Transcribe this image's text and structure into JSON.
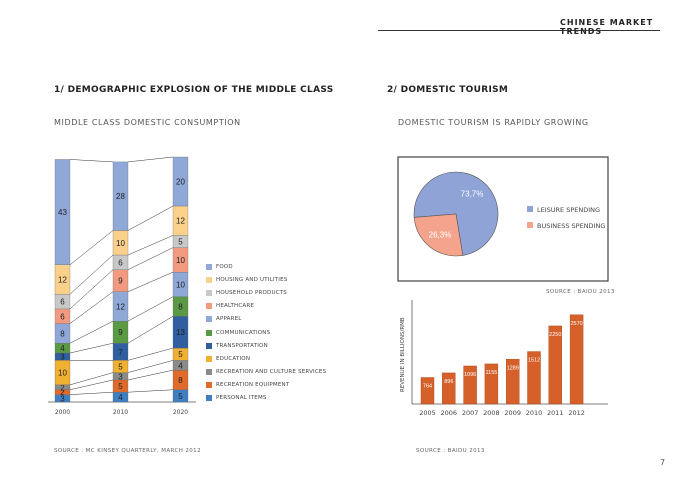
{
  "header": {
    "title": "CHINESE MARKET TRENDS"
  },
  "page_number": "7",
  "left": {
    "section_title": "1/ DEMOGRAPHIC EXPLOSION OF THE MIDDLE CLASS",
    "subtitle": "MIDDLE CLASS DOMESTIC CONSUMPTION",
    "source": "SOURCE : MC KINSEY QUARTERLY, MARCH 2012"
  },
  "right": {
    "section_title": "2/ DOMESTIC TOURISM",
    "subtitle": "DOMESTIC TOURISM IS RAPIDLY GROWING",
    "pie_source": "SOURCE : BAIDU 2013",
    "bar_source": "SOURCE : BAIDU 2013"
  },
  "chart_data": [
    {
      "type": "bar",
      "stacked": true,
      "categories": [
        "2000",
        "2010",
        "2020"
      ],
      "series": [
        {
          "name": "PERSONAL ITEMS",
          "color": "#3f7fc4",
          "values": [
            3,
            4,
            5
          ]
        },
        {
          "name": "RECREATION EQUIPMENT",
          "color": "#e06a2a",
          "values": [
            2,
            5,
            8
          ]
        },
        {
          "name": "RECREATION AND CULTURE SERVICES",
          "color": "#8a8a8a",
          "values": [
            2,
            3,
            4
          ]
        },
        {
          "name": "EDUCATION",
          "color": "#f0b030",
          "values": [
            10,
            5,
            5
          ]
        },
        {
          "name": "TRANSPORTATION",
          "color": "#2f5f9e",
          "values": [
            3,
            7,
            13
          ]
        },
        {
          "name": "COMMUNICATIONS",
          "color": "#5a9a44",
          "values": [
            4,
            9,
            8
          ]
        },
        {
          "name": "APPAREL",
          "color": "#8fa8d8",
          "values": [
            8,
            12,
            10
          ]
        },
        {
          "name": "HEALTHCARE",
          "color": "#f29a80",
          "values": [
            6,
            9,
            10
          ]
        },
        {
          "name": "HOUSEHOLD PRODUCTS",
          "color": "#c8c8c8",
          "values": [
            6,
            6,
            5
          ]
        },
        {
          "name": "HOUSING AND UTILITIES",
          "color": "#fad08a",
          "values": [
            12,
            10,
            12
          ]
        },
        {
          "name": "FOOD",
          "color": "#8fa8d8",
          "values": [
            43,
            28,
            20
          ]
        }
      ],
      "legend_position": "right",
      "legend_order": [
        "FOOD",
        "HOUSING AND UTILITIES",
        "HOUSEHOLD PRODUCTS",
        "HEALTHCARE",
        "APPAREL",
        "COMMUNICATIONS",
        "TRANSPORTATION",
        "EDUCATION",
        "RECREATION AND CULTURE SERVICES",
        "RECREATION EQUIPMENT",
        "PERSONAL ITEMS"
      ]
    },
    {
      "type": "pie",
      "slices": [
        {
          "name": "LEISURE SPENDING",
          "value": 73.7,
          "label": "73,7%",
          "color": "#8fa3d6"
        },
        {
          "name": "BUSINESS SPENDING",
          "value": 26.3,
          "label": "26,3%",
          "color": "#f4a48c"
        }
      ],
      "legend_position": "right"
    },
    {
      "type": "bar",
      "categories": [
        "2005",
        "2006",
        "2007",
        "2008",
        "2009",
        "2010",
        "2011",
        "2012"
      ],
      "values": [
        764,
        896,
        1096,
        1155,
        1289,
        1512,
        2250,
        2570
      ],
      "labels": [
        "764",
        "896",
        "1096",
        "1155",
        "1289",
        "1512",
        "2250",
        "2570"
      ],
      "ylabel": "REVENUE IN BILLIONS/RMB",
      "ylim": [
        0,
        3000
      ],
      "color": "#d5602a"
    }
  ]
}
